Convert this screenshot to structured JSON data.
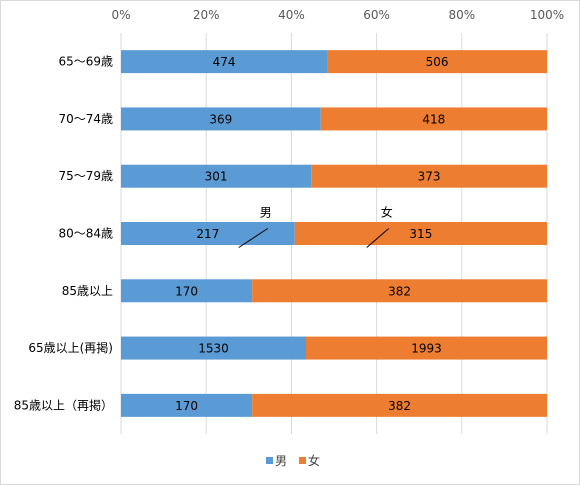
{
  "chart_data": {
    "type": "bar",
    "orientation": "horizontal",
    "stacking": "percent",
    "categories": [
      "65～69歳",
      "70～74歳",
      "75～79歳",
      "80～84歳",
      "85歳以上",
      "65歳以上(再掲)",
      "85歳以上（再掲）"
    ],
    "series": [
      {
        "name": "男",
        "values": [
          474,
          369,
          301,
          217,
          170,
          1530,
          170
        ],
        "color": "#5b9bd5"
      },
      {
        "name": "女",
        "values": [
          506,
          418,
          373,
          315,
          382,
          1993,
          382
        ],
        "color": "#ed7d31"
      }
    ],
    "x_ticks": [
      "0%",
      "20%",
      "40%",
      "60%",
      "80%",
      "100%"
    ],
    "xlim": [
      0,
      100
    ],
    "x_axis_position": "top",
    "grid": true,
    "legend": "bottom",
    "annotations": [
      {
        "text": "男",
        "category": "80～84歳",
        "series": "男"
      },
      {
        "text": "女",
        "category": "80～84歳",
        "series": "女"
      }
    ]
  }
}
